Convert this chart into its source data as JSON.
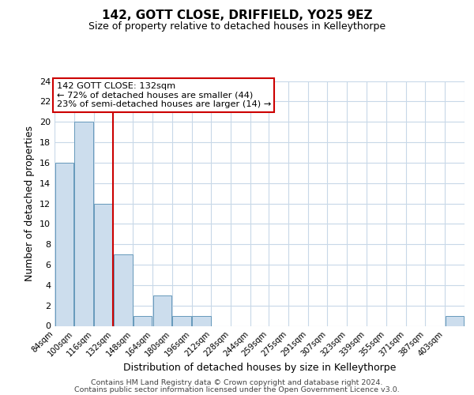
{
  "title": "142, GOTT CLOSE, DRIFFIELD, YO25 9EZ",
  "subtitle": "Size of property relative to detached houses in Kelleythorpe",
  "xlabel": "Distribution of detached houses by size in Kelleythorpe",
  "ylabel": "Number of detached properties",
  "bar_color": "#ccdded",
  "bar_edge_color": "#6699bb",
  "bin_labels": [
    "84sqm",
    "100sqm",
    "116sqm",
    "132sqm",
    "148sqm",
    "164sqm",
    "180sqm",
    "196sqm",
    "212sqm",
    "228sqm",
    "244sqm",
    "259sqm",
    "275sqm",
    "291sqm",
    "307sqm",
    "323sqm",
    "339sqm",
    "355sqm",
    "371sqm",
    "387sqm",
    "403sqm"
  ],
  "bin_edges": [
    84,
    100,
    116,
    132,
    148,
    164,
    180,
    196,
    212,
    228,
    244,
    259,
    275,
    291,
    307,
    323,
    339,
    355,
    371,
    387,
    403
  ],
  "counts": [
    16,
    20,
    12,
    7,
    1,
    3,
    1,
    1,
    0,
    0,
    0,
    0,
    0,
    0,
    0,
    0,
    0,
    0,
    0,
    0,
    1
  ],
  "vline_x": 132,
  "vline_color": "#cc0000",
  "annotation_line1": "142 GOTT CLOSE: 132sqm",
  "annotation_line2": "← 72% of detached houses are smaller (44)",
  "annotation_line3": "23% of semi-detached houses are larger (14) →",
  "ylim": [
    0,
    24
  ],
  "yticks": [
    0,
    2,
    4,
    6,
    8,
    10,
    12,
    14,
    16,
    18,
    20,
    22,
    24
  ],
  "footer_line1": "Contains HM Land Registry data © Crown copyright and database right 2024.",
  "footer_line2": "Contains public sector information licensed under the Open Government Licence v3.0.",
  "background_color": "#ffffff",
  "grid_color": "#c8d8e8"
}
